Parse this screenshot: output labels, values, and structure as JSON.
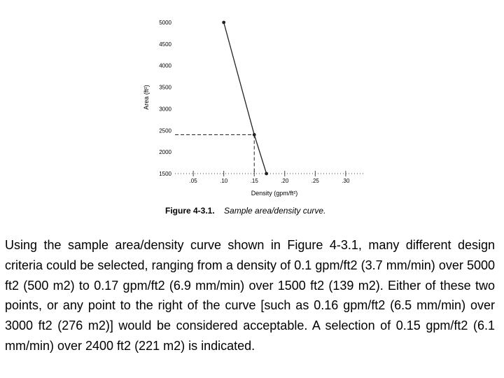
{
  "chart_data": {
    "type": "line",
    "title": "",
    "xlabel": "Density (gpm/ft²)",
    "ylabel": "Area (ft²)",
    "xlim": [
      0.02,
      0.33
    ],
    "ylim": [
      1500,
      5000
    ],
    "x_ticks": [
      0.05,
      0.1,
      0.15,
      0.2,
      0.25,
      0.3
    ],
    "x_tick_labels": [
      ".05",
      ".10",
      ".15",
      ".20",
      ".25",
      ".30"
    ],
    "y_ticks": [
      1500,
      2000,
      2500,
      3000,
      3500,
      4000,
      4500,
      5000
    ],
    "y_tick_labels": [
      "1500",
      "2000",
      "2500",
      "3000",
      "3500",
      "4000",
      "4500",
      "5000"
    ],
    "series": [
      {
        "x": [
          0.1,
          0.15,
          0.17
        ],
        "y": [
          5000,
          2400,
          1500
        ]
      }
    ],
    "highlight": {
      "x": 0.15,
      "y": 2400
    },
    "grid": false,
    "legend": "none"
  },
  "caption": {
    "number": "Figure 4-3.1.",
    "title": "Sample area/density curve."
  },
  "paragraph": "Using the sample area/density curve shown in Figure 4-3.1, many different design criteria could be selected, ranging from a density of 0.1 gpm/ft2 (3.7 mm/min) over 5000 ft2 (500 m2) to 0.17 gpm/ft2 (6.9 mm/min) over 1500 ft2 (139 m2). Either of these two points, or any point to the right of the curve [such as 0.16 gpm/ft2 (6.5 mm/min) over 3000 ft2 (276 m2)] would be considered acceptable. A selection of 0.15 gpm/ft2 (6.1 mm/min) over 2400 ft2 (221 m2) is indicated.",
  "colors": {
    "line": "#222222",
    "axis": "#444444",
    "text": "#000000"
  }
}
